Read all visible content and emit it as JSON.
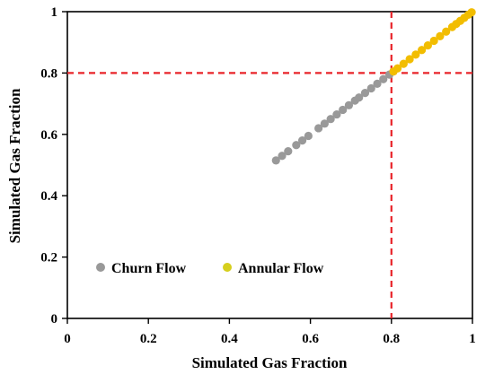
{
  "chart_data": {
    "type": "scatter",
    "title": "",
    "xlabel": "Simulated Gas Fraction",
    "ylabel": "Simulated Gas Fraction",
    "xlim": [
      0,
      1
    ],
    "ylim": [
      0,
      1
    ],
    "xticks": [
      0,
      0.2,
      0.4,
      0.6,
      0.8,
      1
    ],
    "xtick_labels": [
      "0",
      "0.2",
      "0.4",
      "0.6",
      "0.8",
      "1"
    ],
    "yticks": [
      0,
      0.2,
      0.4,
      0.6,
      0.8,
      1
    ],
    "ytick_labels": [
      "0",
      "0.2",
      "0.4",
      "0.6",
      "0.8",
      "1"
    ],
    "grid": false,
    "legend_position": "bottom-left",
    "reference_lines": [
      {
        "axis": "x",
        "value": 0.8,
        "color": "#e8242a",
        "style": "dashed"
      },
      {
        "axis": "y",
        "value": 0.8,
        "color": "#e8242a",
        "style": "dashed"
      }
    ],
    "series": [
      {
        "name": "Churn Flow",
        "color": "#999999",
        "points": [
          [
            0.515,
            0.515
          ],
          [
            0.53,
            0.53
          ],
          [
            0.545,
            0.545
          ],
          [
            0.565,
            0.565
          ],
          [
            0.58,
            0.58
          ],
          [
            0.595,
            0.595
          ],
          [
            0.62,
            0.62
          ],
          [
            0.635,
            0.635
          ],
          [
            0.65,
            0.65
          ],
          [
            0.665,
            0.665
          ],
          [
            0.68,
            0.68
          ],
          [
            0.695,
            0.695
          ],
          [
            0.71,
            0.71
          ],
          [
            0.72,
            0.72
          ],
          [
            0.735,
            0.735
          ],
          [
            0.75,
            0.75
          ],
          [
            0.765,
            0.765
          ],
          [
            0.78,
            0.78
          ],
          [
            0.795,
            0.795
          ]
        ]
      },
      {
        "name": "Annular Flow",
        "color": "#f2bd00",
        "points": [
          [
            0.805,
            0.805
          ],
          [
            0.815,
            0.815
          ],
          [
            0.83,
            0.83
          ],
          [
            0.845,
            0.845
          ],
          [
            0.86,
            0.86
          ],
          [
            0.875,
            0.875
          ],
          [
            0.89,
            0.89
          ],
          [
            0.905,
            0.905
          ],
          [
            0.92,
            0.92
          ],
          [
            0.935,
            0.935
          ],
          [
            0.95,
            0.95
          ],
          [
            0.96,
            0.96
          ],
          [
            0.97,
            0.97
          ],
          [
            0.98,
            0.98
          ],
          [
            0.99,
            0.99
          ],
          [
            0.998,
            0.998
          ]
        ]
      }
    ]
  }
}
